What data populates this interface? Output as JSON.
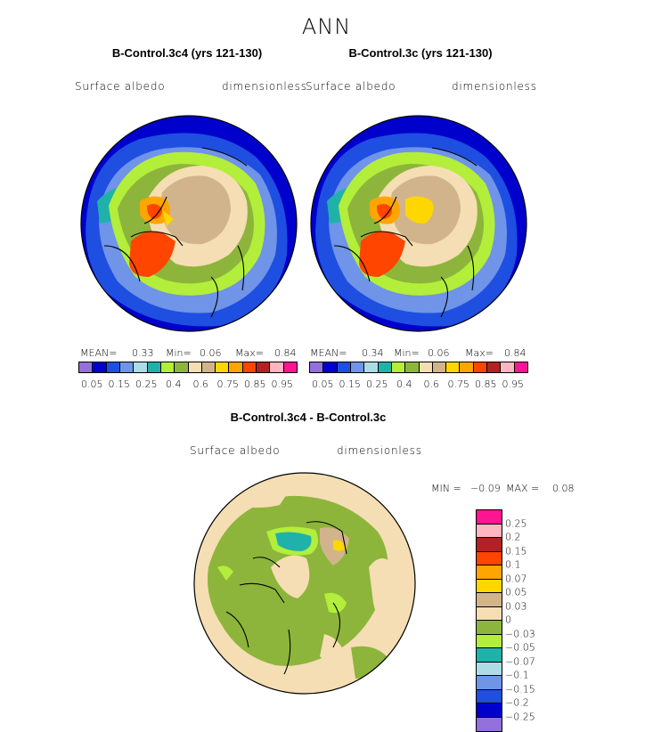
{
  "title": "ANN",
  "panels": [
    {
      "title": "B-Control.3c4 (yrs 121-130)",
      "variable": "Surface albedo",
      "units": "dimensionless",
      "stats": {
        "mean_label": "MEAN=",
        "mean": "0.33",
        "min_label": "Min=",
        "min": "0.06",
        "max_label": "Max=",
        "max": "0.84"
      }
    },
    {
      "title": "B-Control.3c (yrs 121-130)",
      "variable": "Surface albedo",
      "units": "dimensionless",
      "stats": {
        "mean_label": "MEAN=",
        "mean": "0.34",
        "min_label": "Min=",
        "min": "0.06",
        "max_label": "Max=",
        "max": "0.84"
      }
    }
  ],
  "diff_panel": {
    "title": "B-Control.3c4 - B-Control.3c",
    "variable": "Surface albedo",
    "units": "dimensionless",
    "stats": {
      "min_label": "MIN =",
      "min": "−0.09",
      "max_label": "MAX =",
      "max": "0.08"
    }
  },
  "colorbar_main": {
    "colors": [
      "#9370db",
      "#0000cd",
      "#1e4fe0",
      "#6f94e8",
      "#aedce6",
      "#20b2aa",
      "#b3ee3a",
      "#8db53b",
      "#f5deb3",
      "#d2b48c",
      "#ffd700",
      "#ffa500",
      "#ff4500",
      "#b22222",
      "#ffb6c1",
      "#ff1493"
    ],
    "labels": [
      "0.05",
      "0.15",
      "0.25",
      "0.4",
      "0.6",
      "0.75",
      "0.85",
      "0.95"
    ]
  },
  "colorbar_diff": {
    "colors": [
      "#ff1493",
      "#ffb6c1",
      "#b22222",
      "#ff4500",
      "#ffa500",
      "#ffd700",
      "#d2b48c",
      "#f5deb3",
      "#8db53b",
      "#b3ee3a",
      "#20b2aa",
      "#aedce6",
      "#6f94e8",
      "#1e4fe0",
      "#0000cd",
      "#9370db"
    ],
    "labels": [
      "0.25",
      "0.2",
      "0.15",
      "0.1",
      "0.07",
      "0.05",
      "0.03",
      "0",
      "−0.03",
      "−0.05",
      "−0.07",
      "−0.1",
      "−0.15",
      "−0.2",
      "−0.25"
    ]
  }
}
